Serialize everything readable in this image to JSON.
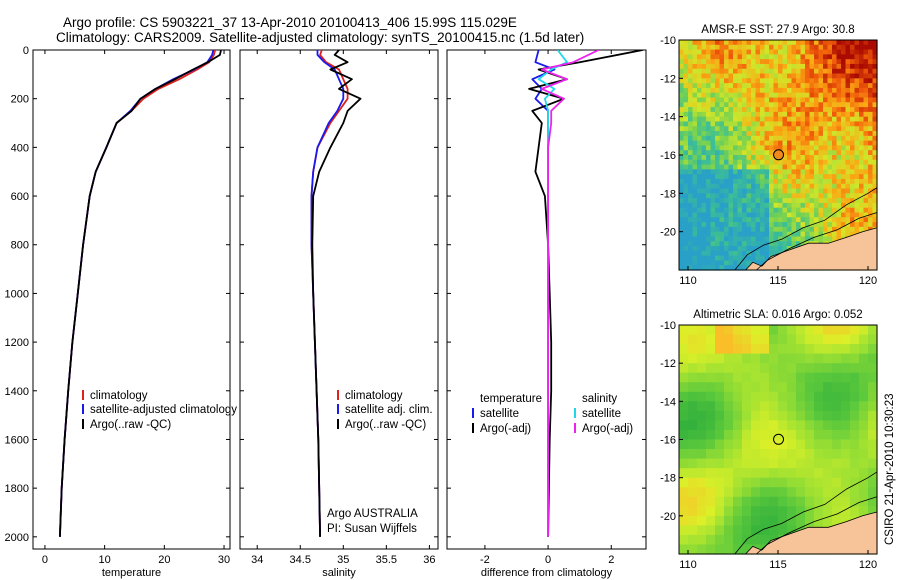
{
  "header": {
    "line1": "Argo profile: CS 5903221_37 13-Apr-2010 20100413_406 15.99S 115.029E",
    "line2": "Climatology: CARS2009. Satellite-adjusted climatology: synTS_20100415.nc (1.5d later)"
  },
  "side_label": "CSIRO 21-Apr-2010 10:30:23",
  "colors": {
    "clim": "#e0201a",
    "sat": "#1a1aee",
    "argo": "#000000",
    "sat_sal": "#22d8e8",
    "argo_sal": "#ee22ee",
    "land": "#f7c49a"
  },
  "chart_data": [
    {
      "type": "line",
      "id": "temperature",
      "xlabel": "temperature",
      "ylabel": "",
      "xlim": [
        -2,
        31
      ],
      "ylim": [
        2050,
        0
      ],
      "xticks": [
        0,
        10,
        20,
        30
      ],
      "yticks": [
        0,
        200,
        400,
        600,
        800,
        1000,
        1200,
        1400,
        1600,
        1800,
        2000
      ],
      "legend": [
        "climatology",
        "satellite-adjusted climatology",
        "Argo(..raw -QC)"
      ],
      "series": [
        {
          "name": "climatology",
          "color": "#e0201a",
          "x": [
            28.5,
            28.3,
            27.5,
            25.5,
            22.5,
            19,
            16.5,
            14.5,
            12,
            10.3,
            8.5,
            7.5,
            6.4,
            5.5,
            4.6,
            3.9,
            3.3,
            2.8,
            2.5
          ],
          "y": [
            0,
            20,
            50,
            80,
            120,
            160,
            200,
            250,
            300,
            400,
            500,
            600,
            800,
            1000,
            1200,
            1400,
            1600,
            1800,
            2000
          ]
        },
        {
          "name": "satellite-adjusted climatology",
          "color": "#1a1aee",
          "x": [
            28.2,
            28.0,
            27.2,
            25.0,
            21.5,
            18.5,
            16,
            14.3,
            12,
            10.3,
            8.5,
            7.5,
            6.4,
            5.5,
            4.6,
            3.9,
            3.3,
            2.8,
            2.5
          ],
          "y": [
            0,
            20,
            50,
            80,
            120,
            160,
            200,
            250,
            300,
            400,
            500,
            600,
            800,
            1000,
            1200,
            1400,
            1600,
            1800,
            2000
          ]
        },
        {
          "name": "Argo(..raw -QC)",
          "color": "#000000",
          "x": [
            29.5,
            29.3,
            27.3,
            24.8,
            21.8,
            18.5,
            16,
            14.5,
            12,
            10.3,
            8.5,
            7.5,
            6.4,
            5.5,
            4.6,
            3.9,
            3.3,
            2.8,
            2.5
          ],
          "y": [
            0,
            20,
            50,
            80,
            120,
            160,
            200,
            250,
            300,
            400,
            500,
            600,
            800,
            1000,
            1200,
            1400,
            1600,
            1800,
            2000
          ]
        }
      ]
    },
    {
      "type": "line",
      "id": "salinity",
      "xlabel": "salinity",
      "xlim": [
        33.8,
        36.1
      ],
      "ylim": [
        2050,
        0
      ],
      "xticks": [
        34,
        34.5,
        35,
        35.5,
        36
      ],
      "legend": [
        "climatology",
        "satellite adj. clim.",
        "Argo(..raw -QC)"
      ],
      "annotations": [
        "Argo AUSTRALIA",
        "PI: Susan Wijffels"
      ],
      "series": [
        {
          "name": "climatology",
          "color": "#e0201a",
          "x": [
            34.75,
            34.73,
            34.8,
            34.95,
            35.0,
            35.05,
            35.05,
            34.95,
            34.85,
            34.7,
            34.65,
            34.63,
            34.63,
            34.65,
            34.67,
            34.69,
            34.71,
            34.72,
            34.73
          ],
          "y": [
            0,
            20,
            50,
            80,
            120,
            160,
            200,
            250,
            300,
            400,
            500,
            600,
            800,
            1000,
            1200,
            1400,
            1600,
            1800,
            2000
          ]
        },
        {
          "name": "satellite adj. clim.",
          "color": "#1a1aee",
          "x": [
            34.7,
            34.7,
            34.78,
            34.9,
            34.95,
            35.0,
            35.0,
            34.93,
            34.83,
            34.7,
            34.65,
            34.63,
            34.63,
            34.65,
            34.67,
            34.69,
            34.71,
            34.72,
            34.73
          ],
          "y": [
            0,
            20,
            50,
            80,
            120,
            160,
            200,
            250,
            300,
            400,
            500,
            600,
            800,
            1000,
            1200,
            1400,
            1600,
            1800,
            2000
          ]
        },
        {
          "name": "Argo(..raw -QC)",
          "color": "#000000",
          "x": [
            34.95,
            34.9,
            35.05,
            34.85,
            35.1,
            34.95,
            35.2,
            35.05,
            35.0,
            34.85,
            34.72,
            34.65,
            34.64,
            34.65,
            34.67,
            34.69,
            34.71,
            34.72,
            34.73
          ],
          "y": [
            0,
            20,
            50,
            80,
            120,
            160,
            200,
            250,
            300,
            400,
            500,
            600,
            800,
            1000,
            1200,
            1400,
            1600,
            1800,
            2000
          ]
        }
      ]
    },
    {
      "type": "line",
      "id": "difference",
      "xlabel": "difference from climatology",
      "xlim": [
        -3.2,
        3.1
      ],
      "ylim": [
        2050,
        0
      ],
      "xticks": [
        -2,
        0,
        2
      ],
      "legend_titles": [
        "temperature",
        "salinity"
      ],
      "legend": [
        "satellite",
        "Argo(-adj)",
        "satellite",
        "Argo(-adj)"
      ],
      "series": [
        {
          "name": "temperature satellite",
          "color": "#1a1aee",
          "x": [
            -0.3,
            -0.4,
            0.2,
            -0.5,
            -0.2,
            -0.4,
            0.0,
            0.0,
            0.0,
            0.0,
            0.0,
            0.0,
            0.0,
            0.0,
            0.0,
            0.0,
            0.0
          ],
          "y": [
            0,
            50,
            80,
            120,
            160,
            200,
            250,
            300,
            400,
            500,
            600,
            800,
            1000,
            1200,
            1400,
            1600,
            2000
          ]
        },
        {
          "name": "temperature Argo(-adj)",
          "color": "#000000",
          "x": [
            3.0,
            1.0,
            -0.3,
            0.6,
            -0.6,
            0.5,
            -0.5,
            -0.2,
            -0.3,
            -0.4,
            -0.1,
            0.0,
            0.05,
            0.1,
            0.1,
            0.05,
            0.0
          ],
          "y": [
            0,
            50,
            80,
            120,
            160,
            200,
            250,
            300,
            400,
            500,
            600,
            800,
            1000,
            1200,
            1400,
            1600,
            2000
          ]
        },
        {
          "name": "salinity satellite",
          "color": "#22d8e8",
          "x": [
            0.3,
            0.6,
            0.1,
            -0.3,
            0.2,
            -0.1,
            0.0,
            0.0,
            0.0,
            0.0,
            0.0,
            0.0,
            0.0,
            0.0,
            0.0,
            0.0,
            0.0
          ],
          "y": [
            0,
            50,
            80,
            120,
            160,
            200,
            250,
            300,
            400,
            500,
            600,
            800,
            1000,
            1200,
            1400,
            1600,
            2000
          ]
        },
        {
          "name": "salinity Argo(-adj)",
          "color": "#ee22ee",
          "x": [
            1.6,
            0.8,
            -0.2,
            0.6,
            -0.2,
            0.5,
            0.1,
            0.1,
            0.0,
            0.0,
            0.0,
            0.0,
            0.0,
            0.0,
            0.0,
            0.0,
            0.0
          ],
          "y": [
            0,
            50,
            80,
            120,
            160,
            200,
            250,
            300,
            400,
            500,
            600,
            800,
            1000,
            1200,
            1400,
            1600,
            2000
          ]
        }
      ]
    },
    {
      "type": "heatmap",
      "id": "sst_map",
      "title": "AMSR-E SST: 27.9 Argo: 30.8",
      "xlim": [
        109.5,
        120.5
      ],
      "ylim": [
        -22,
        -10
      ],
      "xticks": [
        110,
        115,
        120
      ],
      "yticks": [
        -10,
        -12,
        -14,
        -16,
        -18,
        -20
      ],
      "marker": {
        "lon": 115.03,
        "lat": -15.99
      }
    },
    {
      "type": "heatmap",
      "id": "sla_map",
      "title": "Altimetric SLA: 0.016 Argo: 0.052",
      "xlim": [
        109.5,
        120.5
      ],
      "ylim": [
        -22,
        -10
      ],
      "xticks": [
        110,
        115,
        120
      ],
      "yticks": [
        -10,
        -12,
        -14,
        -16,
        -18,
        -20
      ],
      "marker": {
        "lon": 115.03,
        "lat": -15.99
      }
    }
  ]
}
